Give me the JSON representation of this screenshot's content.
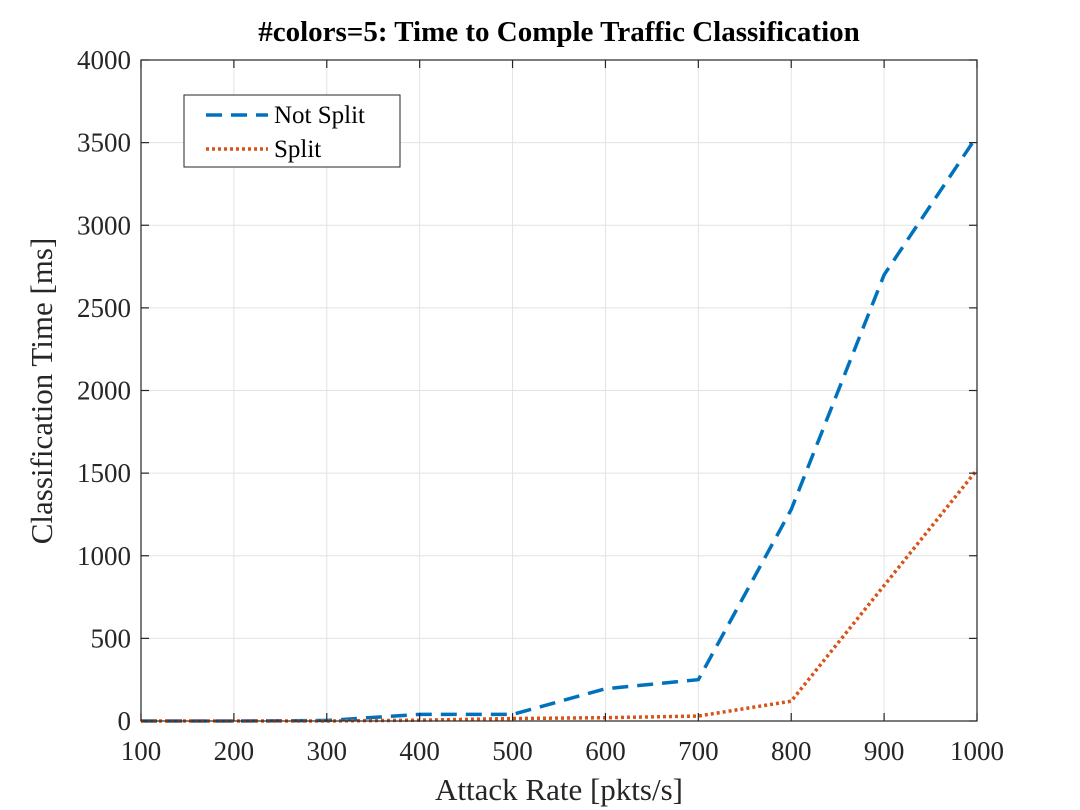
{
  "chart_data": {
    "type": "line",
    "title": "#colors=5: Time to Comple Traffic Classification",
    "xlabel": "Attack Rate [pkts/s]",
    "ylabel": "Classification Time [ms]",
    "xlim": [
      100,
      1000
    ],
    "ylim": [
      0,
      4000
    ],
    "xticks": [
      100,
      200,
      300,
      400,
      500,
      600,
      700,
      800,
      900,
      1000
    ],
    "yticks": [
      0,
      500,
      1000,
      1500,
      2000,
      2500,
      3000,
      3500,
      4000
    ],
    "grid": true,
    "legend_position": "top-left",
    "x": [
      100,
      200,
      300,
      400,
      500,
      600,
      700,
      800,
      900,
      1000
    ],
    "series": [
      {
        "name": "Not Split",
        "color": "#0072BD",
        "style": "dashed",
        "values": [
          0,
          0,
          3,
          40,
          40,
          195,
          250,
          1280,
          2700,
          3540
        ]
      },
      {
        "name": "Split",
        "color": "#D95319",
        "style": "dotted",
        "values": [
          0,
          0,
          0,
          5,
          15,
          20,
          30,
          120,
          820,
          1520
        ]
      }
    ]
  }
}
